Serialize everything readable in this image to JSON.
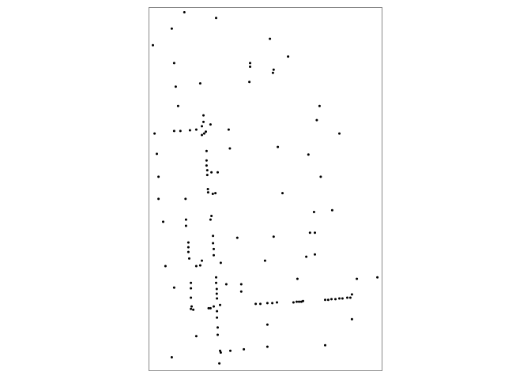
{
  "chart_data": {
    "type": "scatter",
    "title": "",
    "xlabel": "",
    "ylabel": "",
    "xlim": [
      0,
      1
    ],
    "ylim": [
      0,
      1
    ],
    "grid": false,
    "legend": "none",
    "colors": {
      "point": "#000000",
      "frame": "#888888",
      "background": "#ffffff"
    },
    "points": [
      {
        "x": 0.152,
        "y": 0.987
      },
      {
        "x": 0.288,
        "y": 0.971
      },
      {
        "x": 0.098,
        "y": 0.942
      },
      {
        "x": 0.519,
        "y": 0.914
      },
      {
        "x": 0.017,
        "y": 0.896
      },
      {
        "x": 0.597,
        "y": 0.865
      },
      {
        "x": 0.108,
        "y": 0.847
      },
      {
        "x": 0.434,
        "y": 0.847
      },
      {
        "x": 0.434,
        "y": 0.837
      },
      {
        "x": 0.535,
        "y": 0.829
      },
      {
        "x": 0.532,
        "y": 0.82
      },
      {
        "x": 0.431,
        "y": 0.795
      },
      {
        "x": 0.22,
        "y": 0.791
      },
      {
        "x": 0.115,
        "y": 0.782
      },
      {
        "x": 0.125,
        "y": 0.729
      },
      {
        "x": 0.732,
        "y": 0.729
      },
      {
        "x": 0.234,
        "y": 0.703
      },
      {
        "x": 0.72,
        "y": 0.69
      },
      {
        "x": 0.234,
        "y": 0.685
      },
      {
        "x": 0.264,
        "y": 0.678
      },
      {
        "x": 0.227,
        "y": 0.673
      },
      {
        "x": 0.342,
        "y": 0.664
      },
      {
        "x": 0.203,
        "y": 0.664
      },
      {
        "x": 0.176,
        "y": 0.662
      },
      {
        "x": 0.108,
        "y": 0.66
      },
      {
        "x": 0.135,
        "y": 0.66
      },
      {
        "x": 0.024,
        "y": 0.653
      },
      {
        "x": 0.244,
        "y": 0.658
      },
      {
        "x": 0.227,
        "y": 0.649
      },
      {
        "x": 0.237,
        "y": 0.653
      },
      {
        "x": 0.817,
        "y": 0.653
      },
      {
        "x": 0.553,
        "y": 0.616
      },
      {
        "x": 0.347,
        "y": 0.612
      },
      {
        "x": 0.247,
        "y": 0.605
      },
      {
        "x": 0.034,
        "y": 0.597
      },
      {
        "x": 0.684,
        "y": 0.595
      },
      {
        "x": 0.247,
        "y": 0.579
      },
      {
        "x": 0.247,
        "y": 0.565
      },
      {
        "x": 0.25,
        "y": 0.552
      },
      {
        "x": 0.268,
        "y": 0.546
      },
      {
        "x": 0.295,
        "y": 0.546
      },
      {
        "x": 0.25,
        "y": 0.539
      },
      {
        "x": 0.041,
        "y": 0.534
      },
      {
        "x": 0.737,
        "y": 0.534
      },
      {
        "x": 0.253,
        "y": 0.5
      },
      {
        "x": 0.254,
        "y": 0.491
      },
      {
        "x": 0.285,
        "y": 0.489
      },
      {
        "x": 0.274,
        "y": 0.487
      },
      {
        "x": 0.573,
        "y": 0.489
      },
      {
        "x": 0.041,
        "y": 0.473
      },
      {
        "x": 0.157,
        "y": 0.473
      },
      {
        "x": 0.708,
        "y": 0.437
      },
      {
        "x": 0.786,
        "y": 0.442
      },
      {
        "x": 0.268,
        "y": 0.426
      },
      {
        "x": 0.264,
        "y": 0.416
      },
      {
        "x": 0.159,
        "y": 0.416
      },
      {
        "x": 0.061,
        "y": 0.41
      },
      {
        "x": 0.159,
        "y": 0.399
      },
      {
        "x": 0.691,
        "y": 0.38
      },
      {
        "x": 0.712,
        "y": 0.38
      },
      {
        "x": 0.275,
        "y": 0.371
      },
      {
        "x": 0.535,
        "y": 0.369
      },
      {
        "x": 0.379,
        "y": 0.366
      },
      {
        "x": 0.169,
        "y": 0.353
      },
      {
        "x": 0.275,
        "y": 0.351
      },
      {
        "x": 0.169,
        "y": 0.34
      },
      {
        "x": 0.278,
        "y": 0.335
      },
      {
        "x": 0.169,
        "y": 0.327
      },
      {
        "x": 0.278,
        "y": 0.318
      },
      {
        "x": 0.712,
        "y": 0.32
      },
      {
        "x": 0.675,
        "y": 0.314
      },
      {
        "x": 0.173,
        "y": 0.309
      },
      {
        "x": 0.498,
        "y": 0.303
      },
      {
        "x": 0.227,
        "y": 0.303
      },
      {
        "x": 0.308,
        "y": 0.297
      },
      {
        "x": 0.22,
        "y": 0.29
      },
      {
        "x": 0.071,
        "y": 0.288
      },
      {
        "x": 0.203,
        "y": 0.288
      },
      {
        "x": 0.288,
        "y": 0.257
      },
      {
        "x": 0.637,
        "y": 0.253
      },
      {
        "x": 0.892,
        "y": 0.253
      },
      {
        "x": 0.98,
        "y": 0.257
      },
      {
        "x": 0.18,
        "y": 0.242
      },
      {
        "x": 0.288,
        "y": 0.242
      },
      {
        "x": 0.332,
        "y": 0.238
      },
      {
        "x": 0.396,
        "y": 0.238
      },
      {
        "x": 0.108,
        "y": 0.229
      },
      {
        "x": 0.18,
        "y": 0.227
      },
      {
        "x": 0.291,
        "y": 0.225
      },
      {
        "x": 0.396,
        "y": 0.218
      },
      {
        "x": 0.871,
        "y": 0.21
      },
      {
        "x": 0.291,
        "y": 0.212
      },
      {
        "x": 0.292,
        "y": 0.199
      },
      {
        "x": 0.18,
        "y": 0.201
      },
      {
        "x": 0.851,
        "y": 0.201
      },
      {
        "x": 0.864,
        "y": 0.201
      },
      {
        "x": 0.83,
        "y": 0.199
      },
      {
        "x": 0.817,
        "y": 0.199
      },
      {
        "x": 0.8,
        "y": 0.197
      },
      {
        "x": 0.783,
        "y": 0.197
      },
      {
        "x": 0.769,
        "y": 0.195
      },
      {
        "x": 0.756,
        "y": 0.195
      },
      {
        "x": 0.661,
        "y": 0.192
      },
      {
        "x": 0.654,
        "y": 0.19
      },
      {
        "x": 0.644,
        "y": 0.19
      },
      {
        "x": 0.634,
        "y": 0.19
      },
      {
        "x": 0.62,
        "y": 0.188
      },
      {
        "x": 0.549,
        "y": 0.188
      },
      {
        "x": 0.529,
        "y": 0.186
      },
      {
        "x": 0.508,
        "y": 0.186
      },
      {
        "x": 0.478,
        "y": 0.184
      },
      {
        "x": 0.458,
        "y": 0.184
      },
      {
        "x": 0.305,
        "y": 0.181
      },
      {
        "x": 0.278,
        "y": 0.177
      },
      {
        "x": 0.183,
        "y": 0.177
      },
      {
        "x": 0.18,
        "y": 0.17
      },
      {
        "x": 0.19,
        "y": 0.168
      },
      {
        "x": 0.256,
        "y": 0.172
      },
      {
        "x": 0.264,
        "y": 0.172
      },
      {
        "x": 0.292,
        "y": 0.164
      },
      {
        "x": 0.292,
        "y": 0.146
      },
      {
        "x": 0.871,
        "y": 0.142
      },
      {
        "x": 0.508,
        "y": 0.127
      },
      {
        "x": 0.295,
        "y": 0.119
      },
      {
        "x": 0.203,
        "y": 0.095
      },
      {
        "x": 0.295,
        "y": 0.099
      },
      {
        "x": 0.756,
        "y": 0.07
      },
      {
        "x": 0.508,
        "y": 0.066
      },
      {
        "x": 0.407,
        "y": 0.059
      },
      {
        "x": 0.305,
        "y": 0.055
      },
      {
        "x": 0.349,
        "y": 0.055
      },
      {
        "x": 0.308,
        "y": 0.05
      },
      {
        "x": 0.098,
        "y": 0.037
      },
      {
        "x": 0.302,
        "y": 0.02
      }
    ]
  }
}
